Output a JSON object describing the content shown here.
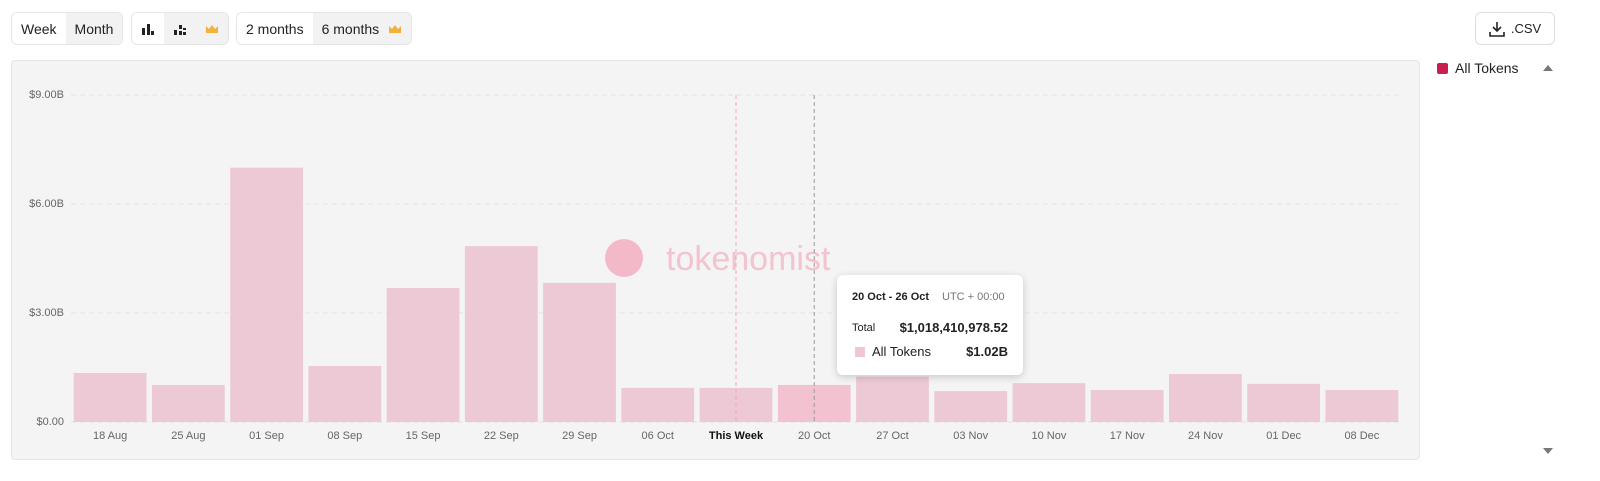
{
  "toolbar": {
    "period": [
      "Week",
      "Month"
    ],
    "range": [
      "2 months",
      "6 months"
    ],
    "export": ".CSV"
  },
  "watermark": "tokenomist",
  "tooltip": {
    "title": "20 Oct - 26 Oct",
    "timezone": "UTC + 00:00",
    "total_label": "Total",
    "total": "$1,018,410,978.52",
    "series_name": "All Tokens",
    "series_value": "$1.02B"
  },
  "chart_data": {
    "type": "bar",
    "categories": [
      "18 Aug",
      "25 Aug",
      "01 Sep",
      "08 Sep",
      "15 Sep",
      "22 Sep",
      "29 Sep",
      "06 Oct",
      "This Week",
      "20 Oct",
      "27 Oct",
      "03 Nov",
      "10 Nov",
      "17 Nov",
      "24 Nov",
      "01 Dec",
      "08 Dec"
    ],
    "series": [
      {
        "name": "All Tokens",
        "color": "#ebc6d3",
        "values": [
          1.35,
          1.02,
          7.0,
          1.54,
          3.69,
          4.84,
          3.83,
          0.94,
          0.94,
          1.02,
          1.25,
          0.85,
          1.07,
          0.88,
          1.32,
          1.05,
          0.88
        ]
      }
    ],
    "ylim": [
      0,
      9
    ],
    "yticks": [
      {
        "value": 0,
        "label": "$0.00"
      },
      {
        "value": 3,
        "label": "$3.00B"
      },
      {
        "value": 6,
        "label": "$6.00B"
      },
      {
        "value": 9,
        "label": "$9.00B"
      }
    ],
    "grid": true
  }
}
